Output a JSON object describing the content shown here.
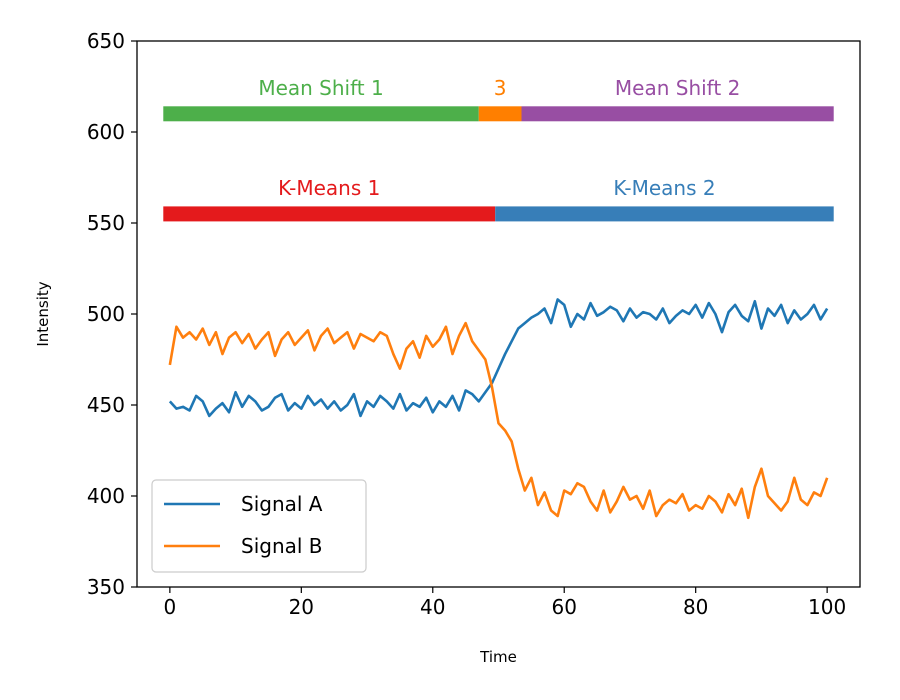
{
  "chart_data": {
    "type": "line",
    "title": "",
    "xlabel": "Time",
    "ylabel": "Intensity",
    "xlim": [
      -5,
      105
    ],
    "ylim": [
      350,
      650
    ],
    "x_ticks": [
      0,
      20,
      40,
      60,
      80,
      100
    ],
    "y_ticks": [
      350,
      400,
      450,
      500,
      550,
      600,
      650
    ],
    "grid": false,
    "legend_position": "lower-left",
    "x": [
      0,
      1,
      2,
      3,
      4,
      5,
      6,
      7,
      8,
      9,
      10,
      11,
      12,
      13,
      14,
      15,
      16,
      17,
      18,
      19,
      20,
      21,
      22,
      23,
      24,
      25,
      26,
      27,
      28,
      29,
      30,
      31,
      32,
      33,
      34,
      35,
      36,
      37,
      38,
      39,
      40,
      41,
      42,
      43,
      44,
      45,
      46,
      47,
      48,
      49,
      50,
      51,
      52,
      53,
      54,
      55,
      56,
      57,
      58,
      59,
      60,
      61,
      62,
      63,
      64,
      65,
      66,
      67,
      68,
      69,
      70,
      71,
      72,
      73,
      74,
      75,
      76,
      77,
      78,
      79,
      80,
      81,
      82,
      83,
      84,
      85,
      86,
      87,
      88,
      89,
      90,
      91,
      92,
      93,
      94,
      95,
      96,
      97,
      98,
      99,
      100
    ],
    "series": [
      {
        "name": "Signal A",
        "color": "#1f77b4",
        "values": [
          452,
          448,
          449,
          447,
          455,
          452,
          444,
          448,
          451,
          446,
          457,
          449,
          455,
          452,
          447,
          449,
          454,
          456,
          447,
          451,
          448,
          455,
          450,
          453,
          448,
          452,
          447,
          450,
          456,
          444,
          452,
          449,
          455,
          452,
          448,
          456,
          447,
          451,
          449,
          454,
          446,
          452,
          449,
          455,
          447,
          458,
          456,
          452,
          457,
          462,
          470,
          478,
          485,
          492,
          495,
          498,
          500,
          503,
          495,
          508,
          505,
          493,
          500,
          497,
          506,
          499,
          501,
          504,
          502,
          496,
          503,
          498,
          501,
          500,
          497,
          503,
          495,
          499,
          502,
          500,
          505,
          498,
          506,
          500,
          490,
          501,
          505,
          499,
          496,
          507,
          492,
          503,
          499,
          505,
          495,
          502,
          497,
          500,
          505,
          497,
          503
        ]
      },
      {
        "name": "Signal B",
        "color": "#ff7f0e",
        "values": [
          472,
          493,
          487,
          490,
          486,
          492,
          483,
          490,
          478,
          487,
          490,
          484,
          489,
          481,
          486,
          490,
          477,
          486,
          490,
          483,
          487,
          491,
          480,
          488,
          492,
          484,
          487,
          490,
          481,
          489,
          487,
          485,
          490,
          488,
          478,
          470,
          481,
          485,
          476,
          488,
          482,
          486,
          493,
          478,
          488,
          495,
          485,
          480,
          475,
          460,
          440,
          436,
          430,
          415,
          403,
          410,
          395,
          402,
          392,
          389,
          403,
          401,
          407,
          405,
          397,
          392,
          403,
          391,
          397,
          405,
          398,
          400,
          393,
          403,
          389,
          395,
          398,
          396,
          401,
          392,
          395,
          393,
          400,
          397,
          391,
          401,
          395,
          404,
          388,
          405,
          415,
          400,
          396,
          392,
          397,
          410,
          398,
          395,
          402,
          400,
          410
        ]
      }
    ],
    "segment_bars": [
      {
        "row": "Mean Shift",
        "segments": [
          {
            "label": "Mean Shift 1",
            "start": -1,
            "end": 47,
            "color": "#4daf4a"
          },
          {
            "label": "3",
            "start": 47,
            "end": 53.5,
            "color": "#ff7f00"
          },
          {
            "label": "Mean Shift 2",
            "start": 53.5,
            "end": 101,
            "color": "#984ea3"
          }
        ],
        "y": 610
      },
      {
        "row": "K-Means",
        "segments": [
          {
            "label": "K-Means 1",
            "start": -1,
            "end": 49.5,
            "color": "#e41a1c"
          },
          {
            "label": "K-Means 2",
            "start": 49.5,
            "end": 101,
            "color": "#377eb8"
          }
        ],
        "y": 555
      }
    ]
  }
}
